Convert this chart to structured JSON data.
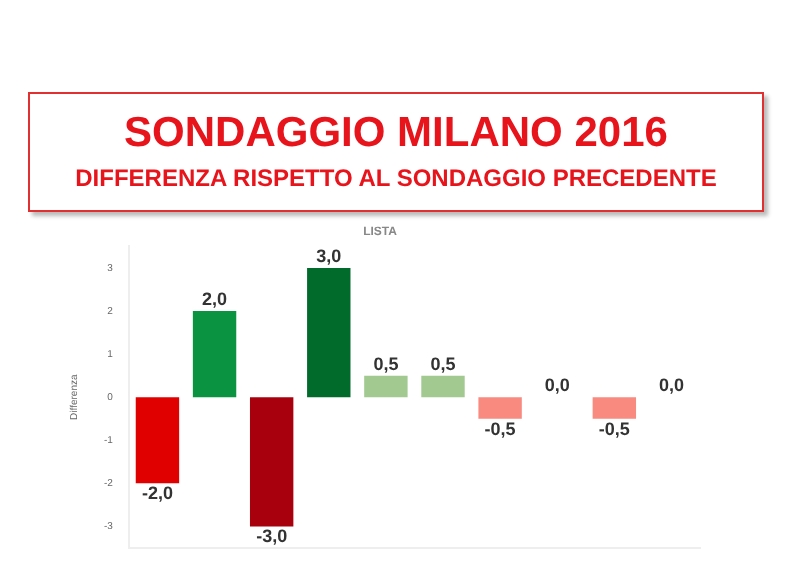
{
  "chart_data": {
    "type": "bar",
    "title": "SONDAGGIO MILANO 2016",
    "subtitle": "DIFFERENZA RISPETTO AL SONDAGGIO PRECEDENTE",
    "ylabel": "Differenza",
    "annotations": [
      "LISTA"
    ],
    "categories": [
      null,
      null,
      null,
      null,
      null,
      null,
      null,
      null,
      null,
      null
    ],
    "values": [
      -2.0,
      2.0,
      -3.0,
      3.0,
      0.5,
      0.5,
      -0.5,
      0.0,
      -0.5,
      0.0
    ],
    "colors": [
      "#e00000",
      "#0a9441",
      "#a8000c",
      "#006b2b",
      "#a2c98f",
      "#a2c98f",
      "#f88a80",
      "#f88a80",
      "#f88a80",
      "#a2c98f"
    ],
    "value_labels": [
      "-2,0",
      "2,0",
      "-3,0",
      "3,0",
      "0,5",
      "0,5",
      "-0,5",
      "0,0",
      "-0,5",
      "0,0"
    ],
    "ylim": [
      -3.5,
      3.5
    ],
    "yticks": [
      -3,
      -2,
      -1,
      0,
      1,
      2,
      3
    ],
    "grid": false,
    "tick_labels": "y",
    "legend": false
  }
}
